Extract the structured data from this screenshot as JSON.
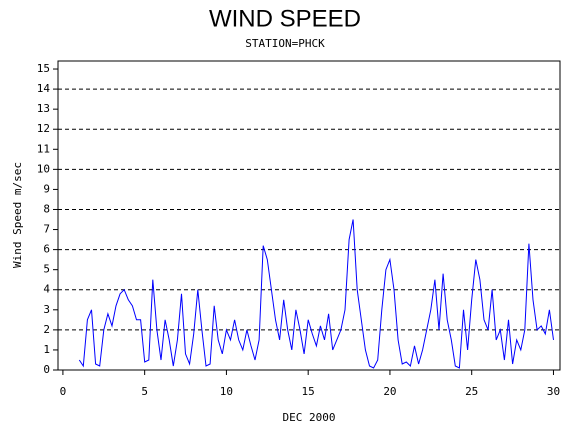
{
  "chart_data": {
    "type": "line",
    "title": "WIND SPEED",
    "subtitle": "STATION=PHCK",
    "x_label": "DEC 2000",
    "y_label": "Wind Speed m/sec",
    "xlim": [
      -0.3,
      30.4
    ],
    "xticks": [
      0,
      5,
      10,
      15,
      20,
      25,
      30
    ],
    "ylim": [
      0,
      15.4
    ],
    "yticks": [
      0,
      1,
      2,
      3,
      4,
      5,
      6,
      7,
      8,
      9,
      10,
      11,
      12,
      13,
      14,
      15
    ],
    "grid_lines": [
      0,
      2,
      4,
      6,
      8,
      10,
      12,
      14
    ],
    "series": [
      {
        "color": "#0000ff",
        "x": [
          1,
          1.25,
          1.5,
          1.75,
          2,
          2.25,
          2.5,
          2.75,
          3,
          3.25,
          3.5,
          3.75,
          4,
          4.25,
          4.5,
          4.75,
          5,
          5.25,
          5.5,
          5.75,
          6,
          6.25,
          6.5,
          6.75,
          7,
          7.25,
          7.5,
          7.75,
          8,
          8.25,
          8.5,
          8.75,
          9,
          9.25,
          9.5,
          9.75,
          10,
          10.25,
          10.5,
          10.75,
          11,
          11.25,
          11.5,
          11.75,
          12,
          12.25,
          12.5,
          12.75,
          13,
          13.25,
          13.5,
          13.75,
          14,
          14.25,
          14.5,
          14.75,
          15,
          15.25,
          15.5,
          15.75,
          16,
          16.25,
          16.5,
          16.75,
          17,
          17.25,
          17.5,
          17.75,
          18,
          18.25,
          18.5,
          18.75,
          19,
          19.25,
          19.5,
          19.75,
          20,
          20.25,
          20.5,
          20.75,
          21,
          21.25,
          21.5,
          21.75,
          22,
          22.25,
          22.5,
          22.75,
          23,
          23.25,
          23.5,
          23.75,
          24,
          24.25,
          24.5,
          24.75,
          25,
          25.25,
          25.5,
          25.75,
          26,
          26.25,
          26.5,
          26.75,
          27,
          27.25,
          27.5,
          27.75,
          28,
          28.25,
          28.5,
          28.75,
          29,
          29.25,
          29.5,
          29.75,
          30
        ],
        "values": [
          0.5,
          0.2,
          2.5,
          3.0,
          0.3,
          0.2,
          2.0,
          2.8,
          2.2,
          3.2,
          3.8,
          4.0,
          3.5,
          3.2,
          2.5,
          2.5,
          0.4,
          0.5,
          4.5,
          2.0,
          0.5,
          2.5,
          1.5,
          0.2,
          1.5,
          3.8,
          0.8,
          0.3,
          1.8,
          4.0,
          2.0,
          0.2,
          0.3,
          3.2,
          1.5,
          0.8,
          2.0,
          1.5,
          2.5,
          1.5,
          1.0,
          2.0,
          1.2,
          0.5,
          1.5,
          6.2,
          5.5,
          4.0,
          2.5,
          1.5,
          3.5,
          2.0,
          1.0,
          3.0,
          2.0,
          0.8,
          2.5,
          1.8,
          1.2,
          2.2,
          1.5,
          2.8,
          1.0,
          1.5,
          2.0,
          3.0,
          6.5,
          7.5,
          4.0,
          2.5,
          1.0,
          0.2,
          0.1,
          0.5,
          3.0,
          5.0,
          5.5,
          4.0,
          1.5,
          0.3,
          0.4,
          0.2,
          1.2,
          0.3,
          1.0,
          2.0,
          3.0,
          4.5,
          2.0,
          4.8,
          2.5,
          1.5,
          0.2,
          0.1,
          3.0,
          1.0,
          3.5,
          5.5,
          4.5,
          2.5,
          2.0,
          4.0,
          1.5,
          2.0,
          0.5,
          2.5,
          0.3,
          1.5,
          1.0,
          2.0,
          6.3,
          3.5,
          2.0,
          2.2,
          1.8,
          3.0,
          1.5
        ]
      }
    ]
  }
}
